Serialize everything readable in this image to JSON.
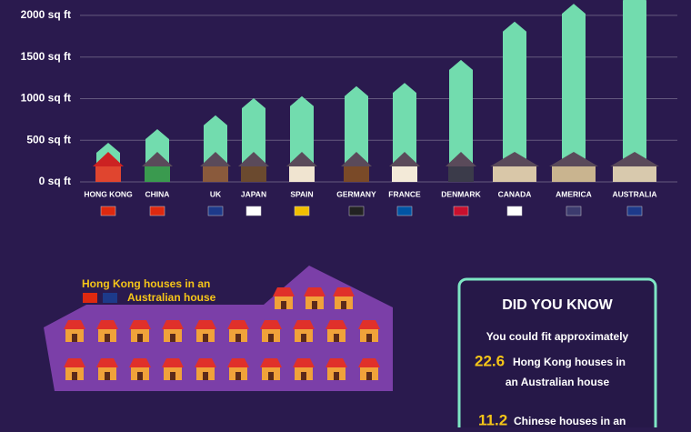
{
  "chart_data": {
    "type": "bar",
    "categories": [
      "HONG KONG",
      "CHINA",
      "UK",
      "JAPAN",
      "SPAIN",
      "GERMANY",
      "FRANCE",
      "DENMARK",
      "CANADA",
      "AMERICA",
      "AUSTRALIA"
    ],
    "values": [
      470,
      634,
      800,
      1005,
      1030,
      1150,
      1190,
      1465,
      1925,
      2140,
      2300
    ],
    "color": "#72dcae",
    "ylim": [
      0,
      2185
    ],
    "yticks": [
      {
        "value": 0,
        "label": "0 sq ft"
      },
      {
        "value": 500,
        "label": "500 sq ft"
      },
      {
        "value": 1000,
        "label": "1000 sq ft"
      },
      {
        "value": 1500,
        "label": "1500 sq ft"
      },
      {
        "value": 2000,
        "label": "2000 sq ft"
      }
    ],
    "grid": true
  },
  "comparison": {
    "legend_lines": [
      "Hong Kong houses in an",
      "Australian house"
    ]
  },
  "did_you_know": {
    "title": "DID YOU KNOW",
    "intro": "You could fit approximately",
    "facts": [
      {
        "number": "22.6",
        "lines": [
          "Hong Kong houses in",
          "an Australian house"
        ]
      },
      {
        "number": "11.2",
        "lines": [
          "Chinese houses in an"
        ]
      }
    ]
  }
}
